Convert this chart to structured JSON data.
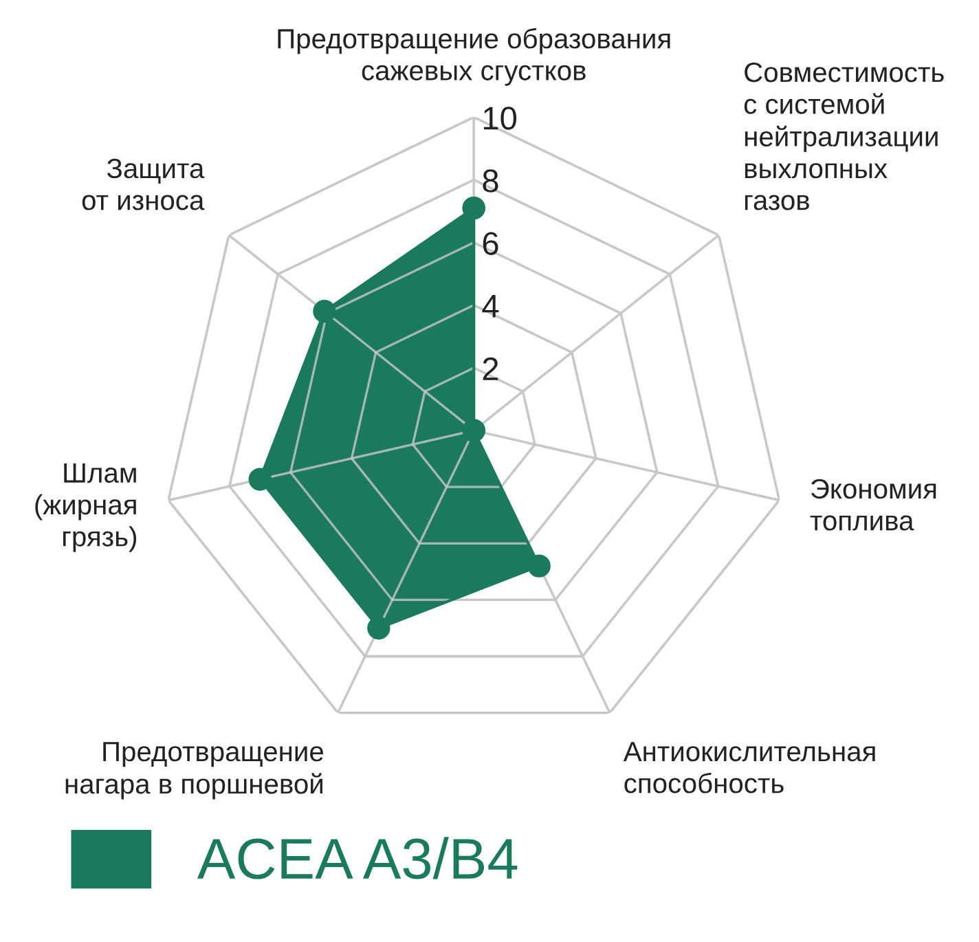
{
  "chart_data": {
    "type": "radar",
    "categories": [
      "Предотвращение образования\nсажевых сгустков",
      "Совместимость\nс системой\nнейтрализации\nвыхлопных\nгазов",
      "Экономия\nтоплива",
      "Антиокислительная\nспособность",
      "Предотвращение\nнагара в поршневой",
      "Шлам\n(жирная\nгрязь)",
      "Защита\nот износа"
    ],
    "series": [
      {
        "name": "ACEA A3/B4",
        "color": "#1b7a5e",
        "values": [
          7.1,
          0,
          0,
          4.8,
          7.0,
          7.0,
          6.1
        ]
      }
    ],
    "ylim": [
      0,
      10
    ],
    "yticks": [
      2,
      4,
      6,
      8,
      10
    ],
    "grid": true,
    "legend": "bottom left",
    "marker": "circle"
  }
}
